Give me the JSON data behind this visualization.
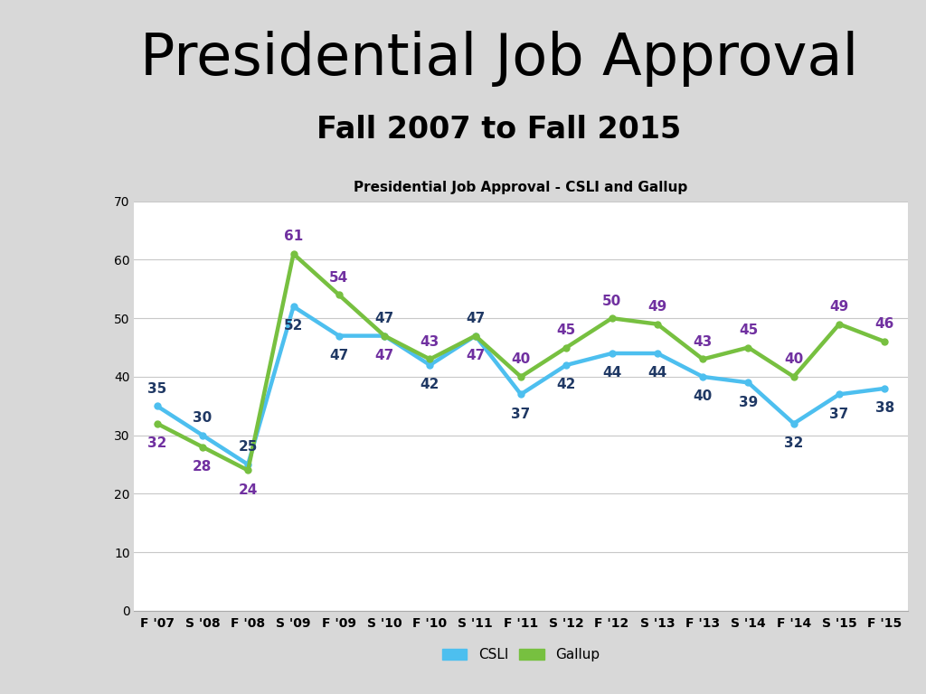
{
  "title": "Presidential Job Approval",
  "subtitle": "Fall 2007 to Fall 2015",
  "chart_title": "Presidential Job Approval - CSLI and Gallup",
  "x_labels": [
    "F '07",
    "S '08",
    "F '08",
    "S '09",
    "F '09",
    "S '10",
    "F '10",
    "S '11",
    "F '11",
    "S '12",
    "F '12",
    "S '13",
    "F '13",
    "S '14",
    "F '14",
    "S '15",
    "F '15"
  ],
  "csli_values": [
    35,
    30,
    25,
    52,
    47,
    47,
    42,
    47,
    37,
    42,
    44,
    44,
    40,
    39,
    32,
    37,
    38
  ],
  "gallup_values": [
    32,
    28,
    24,
    61,
    54,
    47,
    43,
    47,
    40,
    45,
    50,
    49,
    43,
    45,
    40,
    49,
    46
  ],
  "csli_color": "#4DBFEF",
  "gallup_color": "#77C040",
  "csli_label_color": "#1F3864",
  "gallup_label_color": "#7030A0",
  "ylim": [
    0,
    70
  ],
  "yticks": [
    0,
    10,
    20,
    30,
    40,
    50,
    60,
    70
  ],
  "line_width": 3.2,
  "marker_size": 5,
  "bg_color_outer": "#D8D8D8",
  "bg_color_chart": "#FFFFFF",
  "title_fontsize": 46,
  "subtitle_fontsize": 24,
  "chart_title_fontsize": 11,
  "label_fontsize": 11,
  "tick_fontsize": 10,
  "legend_fontsize": 11,
  "strip_gray_color": "#6D6D6D",
  "strip_blue_color": "#4DBFEF"
}
